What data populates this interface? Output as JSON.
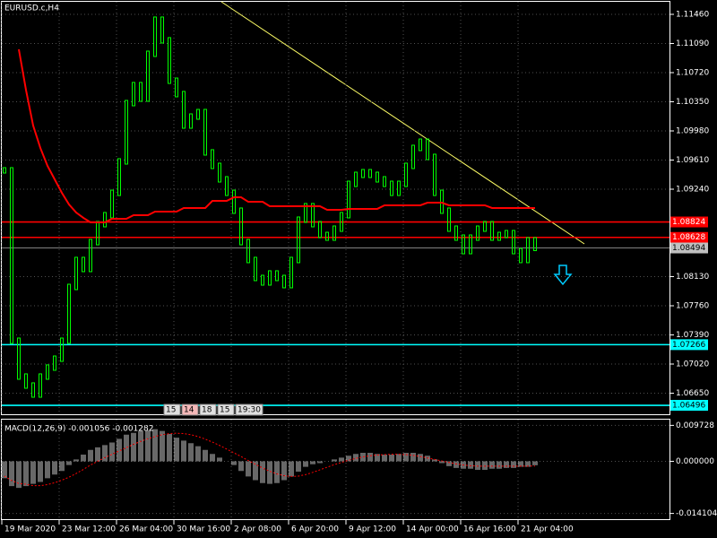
{
  "chart_data": [
    {
      "type": "price_bars",
      "title": "EURUSD.c,H4",
      "color": "#00ff00",
      "grid": true,
      "values": [
        1.09479,
        1.07316,
        1.06861,
        1.06747,
        1.06633,
        1.06861,
        1.06975,
        1.07088,
        1.07316,
        1.07999,
        1.08341,
        1.08227,
        1.08568,
        1.08796,
        1.0891,
        1.09194,
        1.09593,
        1.10333,
        1.10561,
        1.1039,
        1.10959,
        1.11392,
        1.1113,
        1.10617,
        1.10447,
        1.10048,
        1.10162,
        1.10219,
        1.09707,
        1.09536,
        1.09365,
        1.09194,
        1.08967,
        1.08568,
        1.08341,
        1.08113,
        1.08056,
        1.0817,
        1.08113,
        1.08022,
        1.08341,
        1.08853,
        1.09024,
        1.08796,
        1.08659,
        1.08625,
        1.08739,
        1.0891,
        1.09308,
        1.09422,
        1.09456,
        1.09422,
        1.09365,
        1.09308,
        1.09194,
        1.09308,
        1.09536,
        1.09764,
        1.09843,
        1.0965,
        1.09194,
        1.08967,
        1.08739,
        1.08625,
        1.08454,
        1.08625,
        1.08739,
        1.08796,
        1.08625,
        1.08659,
        1.08682,
        1.08454,
        1.08341,
        1.08591,
        1.08494
      ],
      "ma": {
        "color": "#ff0000",
        "values": [
          null,
          null,
          1.11016,
          1.105,
          1.10048,
          1.09764,
          1.09536,
          1.09365,
          1.09194,
          1.09046,
          1.08944,
          1.08876,
          1.08819,
          1.08819,
          1.08819,
          1.08864,
          1.08864,
          1.08864,
          1.0891,
          1.0891,
          1.0891,
          1.08955,
          1.08955,
          1.08955,
          1.08955,
          1.09001,
          1.09001,
          1.09001,
          1.09001,
          1.09092,
          1.09092,
          1.09092,
          1.09137,
          1.09137,
          1.0908,
          1.0908,
          1.0908,
          1.09024,
          1.09024,
          1.09024,
          1.09024,
          1.09024,
          1.09024,
          1.09024,
          1.09024,
          1.08978,
          1.08978,
          1.08978,
          1.0899,
          1.0899,
          1.0899,
          1.0899,
          1.0899,
          1.09035,
          1.09035,
          1.09035,
          1.09035,
          1.09035,
          1.09035,
          1.09069,
          1.09069,
          1.09069,
          1.09035,
          1.09035,
          1.09035,
          1.09035,
          1.09035,
          1.09035,
          1.09001,
          1.09001,
          1.09001,
          1.09001,
          1.09001,
          1.09001,
          1.09001
        ]
      },
      "levels": [
        {
          "value": 1.08824,
          "color": "#ff0000",
          "label_bg": "#ff0000",
          "label_color": "#ffffff"
        },
        {
          "value": 1.08628,
          "color": "#ff0000",
          "label_bg": "#ff0000",
          "label_color": "#ffffff"
        },
        {
          "value": 1.08494,
          "color": "#808080",
          "label_bg": "#c0c0c0",
          "label_color": "#000000"
        },
        {
          "value": 1.07266,
          "color": "#00ffff",
          "label_bg": "#00ffff",
          "label_color": "#000000"
        },
        {
          "value": 1.06496,
          "color": "#00ffff",
          "label_bg": "#00ffff",
          "label_color": "#000000"
        }
      ],
      "ylim": [
        1.06371,
        1.11642
      ],
      "yticks": [
        {
          "value": 1.1146,
          "label": "1.11460"
        },
        {
          "value": 1.1109,
          "label": "1.11090"
        },
        {
          "value": 1.1072,
          "label": "1.10720"
        },
        {
          "value": 1.1035,
          "label": "1.10350"
        },
        {
          "value": 1.0998,
          "label": "1.09980"
        },
        {
          "value": 1.0961,
          "label": "1.09610"
        },
        {
          "value": 1.0924,
          "label": "1.09240"
        },
        {
          "value": 1.0813,
          "label": "1.08130"
        },
        {
          "value": 1.0776,
          "label": "1.07760"
        },
        {
          "value": 1.0739,
          "label": "1.07390"
        },
        {
          "value": 1.0702,
          "label": "1.07020"
        },
        {
          "value": 1.0665,
          "label": "1.06650"
        }
      ],
      "xticks": [
        {
          "value": 0,
          "label": "19 Mar 2020"
        },
        {
          "value": 8,
          "label": "23 Mar 12:00"
        },
        {
          "value": 16,
          "label": "26 Mar 04:00"
        },
        {
          "value": 24,
          "label": "30 Mar 16:00"
        },
        {
          "value": 32,
          "label": "2 Apr 08:00"
        },
        {
          "value": 40,
          "label": "6 Apr 20:00"
        },
        {
          "value": 48,
          "label": "9 Apr 12:00"
        },
        {
          "value": 56,
          "label": "14 Apr 00:00"
        },
        {
          "value": 64,
          "label": "16 Apr 16:00"
        },
        {
          "value": 72,
          "label": "21 Apr 04:00"
        }
      ],
      "period_markers": [
        "15",
        "14",
        "18",
        "15",
        "19:30"
      ]
    },
    {
      "type": "macd",
      "title": "MACD(12,26,9) -0.001056 -0.001282",
      "grid": true,
      "histogram_color": "#d0d0d0",
      "signal_color": "#ff0000",
      "histogram": [
        -0.0046,
        -0.0067,
        -0.0072,
        -0.0067,
        -0.0061,
        -0.0056,
        -0.0046,
        -0.0036,
        -0.0026,
        -0.001,
        0.0005,
        0.0018,
        0.0031,
        0.0038,
        0.0044,
        0.0051,
        0.0061,
        0.0072,
        0.0077,
        0.0082,
        0.0084,
        0.0087,
        0.0082,
        0.0074,
        0.0064,
        0.0056,
        0.0049,
        0.0041,
        0.0031,
        0.002,
        0.001,
        0,
        -0.001,
        -0.0026,
        -0.0041,
        -0.0051,
        -0.0059,
        -0.0061,
        -0.0059,
        -0.0051,
        -0.0041,
        -0.0028,
        -0.0015,
        -0.0008,
        -0.0005,
        0,
        0.0005,
        0.001,
        0.0015,
        0.002,
        0.0023,
        0.0023,
        0.002,
        0.0018,
        0.0018,
        0.002,
        0.0023,
        0.0023,
        0.002,
        0.0015,
        0.0005,
        -0.0005,
        -0.0013,
        -0.0018,
        -0.002,
        -0.002,
        -0.0023,
        -0.0023,
        -0.002,
        -0.002,
        -0.0018,
        -0.0018,
        -0.0015,
        -0.0015,
        -0.001056
      ],
      "signal": [
        -0.004,
        -0.0052,
        -0.006,
        -0.0062,
        -0.0066,
        -0.0066,
        -0.0063,
        -0.0058,
        -0.0051,
        -0.0043,
        -0.0033,
        -0.0022,
        -0.001,
        0,
        0.001,
        0.0019,
        0.0028,
        0.0037,
        0.0046,
        0.0054,
        0.0061,
        0.0067,
        0.0072,
        0.0075,
        0.0076,
        0.0075,
        0.0072,
        0.0067,
        0.006,
        0.0052,
        0.0043,
        0.0033,
        0.0023,
        0.0013,
        0.0002,
        -0.0008,
        -0.0018,
        -0.0027,
        -0.0034,
        -0.0039,
        -0.0041,
        -0.004,
        -0.0036,
        -0.003,
        -0.0023,
        -0.0016,
        -0.0009,
        -0.0003,
        0.0003,
        0.0008,
        0.0012,
        0.0015,
        0.0017,
        0.0018,
        0.0019,
        0.0019,
        0.0018,
        0.0016,
        0.0013,
        0.0009,
        0.0005,
        0.0001,
        -0.0003,
        -0.0007,
        -0.001,
        -0.0012,
        -0.0013,
        -0.0013,
        -0.0013,
        -0.0013,
        -0.0013,
        -0.0013,
        -0.0013,
        -0.0013,
        -0.001282
      ],
      "ylim": [
        -0.0159,
        0.01152
      ],
      "yticks": [
        0.009728,
        {
          "value": 0,
          "label": "0.000000"
        },
        -0.014104
      ]
    }
  ]
}
